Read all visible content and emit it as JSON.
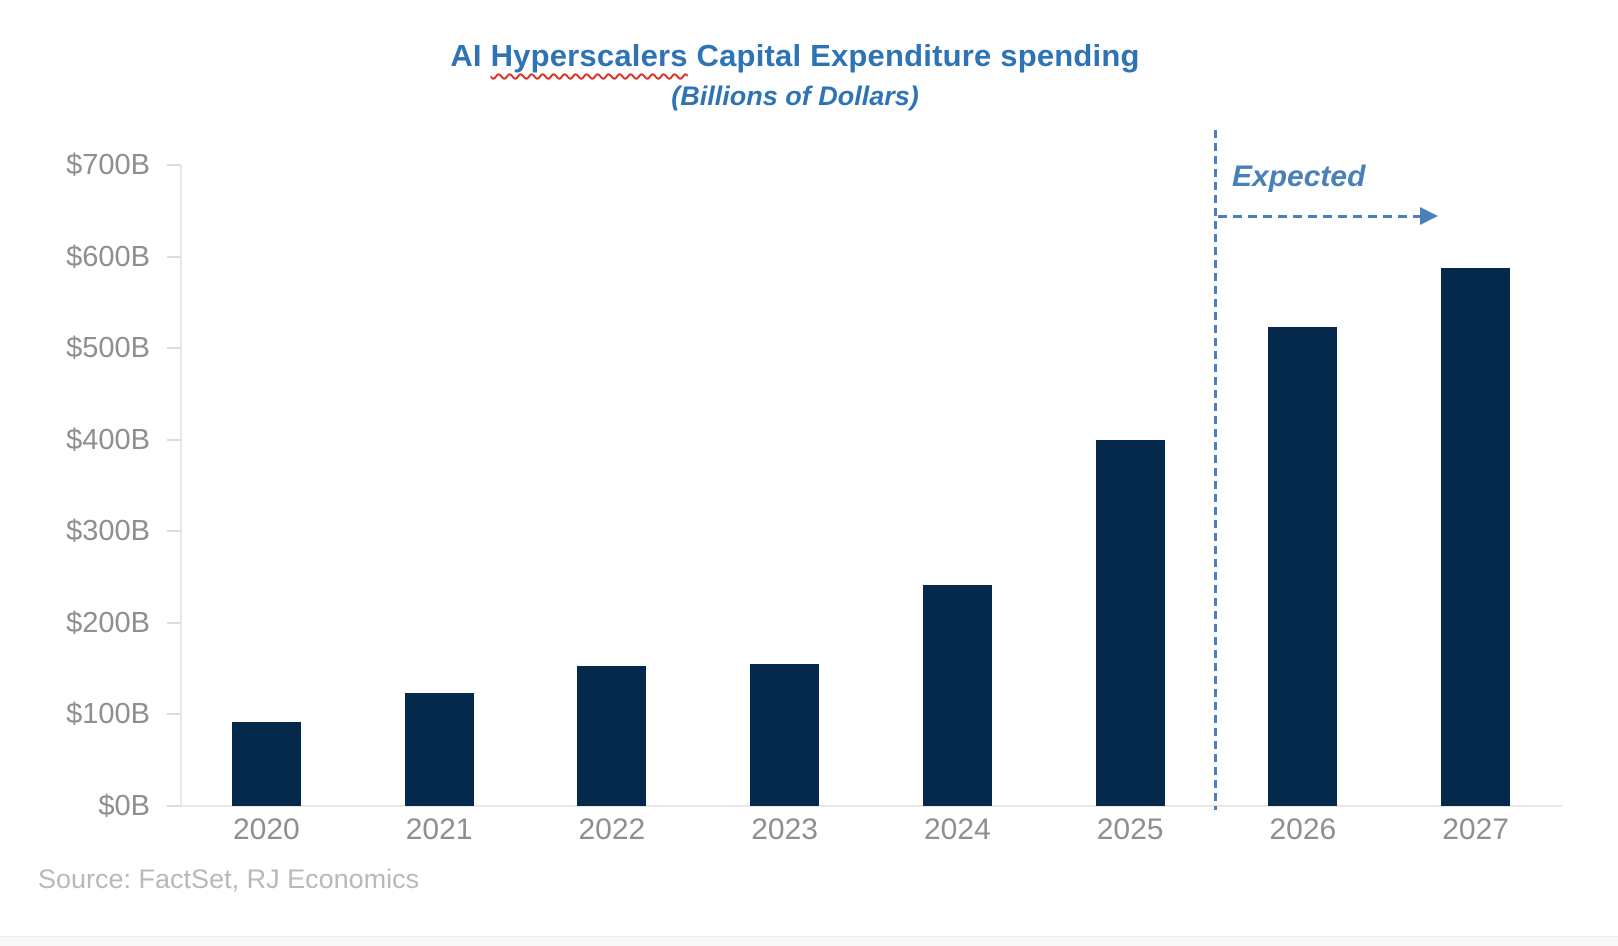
{
  "title": {
    "prefix": "AI ",
    "misspelled_word": "Hyperscalers",
    "suffix": " Capital Expenditure spending",
    "subtitle": "(Billions of Dollars)"
  },
  "annotation": {
    "expected_label": "Expected",
    "arrow_icon": "dashed-right-arrow"
  },
  "footer": {
    "source": "Source: FactSet, RJ Economics"
  },
  "colors": {
    "bar": "#05294a",
    "title_blue": "#2e74b5",
    "annotation_blue": "#4a80b8",
    "axis_label_gray": "#8f8f8f",
    "source_gray": "#b9b9b9",
    "spellcheck_red": "#d93025"
  },
  "chart_data": {
    "type": "bar",
    "title": "AI Hyperscalers Capital Expenditure spending",
    "subtitle": "(Billions of Dollars)",
    "categories": [
      "2020",
      "2021",
      "2022",
      "2023",
      "2024",
      "2025",
      "2026",
      "2027"
    ],
    "values": [
      92,
      123,
      153,
      155,
      241,
      400,
      523,
      588
    ],
    "unit": "billions of dollars",
    "xlabel": "",
    "ylabel": "",
    "ylim": [
      0,
      700
    ],
    "ytick_step": 100,
    "ytick_labels": [
      "$0B",
      "$100B",
      "$200B",
      "$300B",
      "$400B",
      "$500B",
      "$600B",
      "$700B"
    ],
    "grid": false,
    "legend": false,
    "bar_color": "#05294a",
    "forecast": {
      "divider_between": [
        "2025",
        "2026"
      ],
      "label": "Expected",
      "applies_to": [
        "2026",
        "2027"
      ]
    },
    "source": "Source: FactSet, RJ Economics"
  }
}
